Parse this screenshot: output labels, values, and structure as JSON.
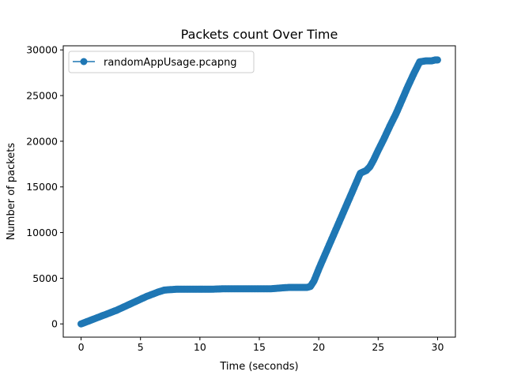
{
  "chart_data": {
    "type": "line",
    "title": "Packets count Over Time",
    "xlabel": "Time (seconds)",
    "ylabel": "Number of packets",
    "xlim": [
      -1.5,
      31.5
    ],
    "ylim": [
      -1450,
      30450
    ],
    "xticks": [
      0,
      5,
      10,
      15,
      20,
      25,
      30
    ],
    "yticks": [
      0,
      5000,
      10000,
      15000,
      20000,
      25000,
      30000
    ],
    "grid": false,
    "legend_position": "upper-left",
    "series": [
      {
        "name": "randomAppUsage.pcapng",
        "color": "#1f77b4",
        "marker": "circle",
        "x": [
          0,
          0.5,
          1,
          1.5,
          2,
          2.5,
          3,
          3.5,
          4,
          4.5,
          5,
          5.5,
          6,
          6.5,
          7,
          7.5,
          8,
          9,
          10,
          11,
          12,
          13,
          14,
          15,
          16,
          16.5,
          17,
          17.5,
          18,
          18.5,
          19,
          19.3,
          19.6,
          20,
          20.5,
          21,
          21.5,
          22,
          22.5,
          23,
          23.5,
          24,
          24.3,
          24.6,
          25,
          25.5,
          26,
          26.5,
          27,
          27.5,
          28,
          28.5,
          29,
          29.5,
          29.8,
          30
        ],
        "y": [
          0,
          250,
          500,
          750,
          1000,
          1250,
          1500,
          1800,
          2100,
          2400,
          2700,
          3000,
          3250,
          3500,
          3700,
          3750,
          3800,
          3800,
          3800,
          3800,
          3850,
          3850,
          3850,
          3850,
          3850,
          3900,
          3950,
          4000,
          4000,
          4000,
          4000,
          4100,
          4700,
          6000,
          7500,
          9000,
          10500,
          12000,
          13500,
          15000,
          16500,
          16800,
          17200,
          17900,
          19000,
          20300,
          21700,
          23000,
          24500,
          26000,
          27400,
          28700,
          28800,
          28800,
          28900,
          28900
        ]
      }
    ]
  }
}
